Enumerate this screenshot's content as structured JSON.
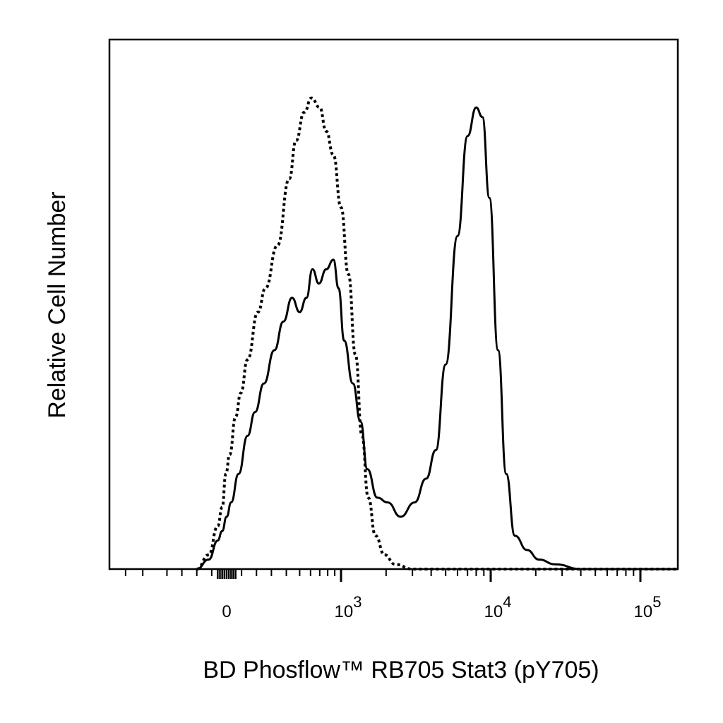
{
  "chart_data": {
    "type": "line",
    "xlabel": "BD Phosflow™ RB705 Stat3 (pY705)",
    "ylabel": "Relative Cell Number",
    "x_scale": "biexponential",
    "x_ticks": [
      {
        "label": "0",
        "value": 0
      },
      {
        "base": "10",
        "exp": "3",
        "value": 1000
      },
      {
        "base": "10",
        "exp": "4",
        "value": 10000
      },
      {
        "base": "10",
        "exp": "5",
        "value": 100000
      }
    ],
    "ylim": [
      0,
      100
    ],
    "grid": false,
    "series": [
      {
        "style": "dotted",
        "color": "#000000",
        "points": [
          [
            -200,
            0
          ],
          [
            -120,
            3
          ],
          [
            -60,
            9
          ],
          [
            -30,
            13
          ],
          [
            -5,
            20
          ],
          [
            20,
            24
          ],
          [
            60,
            32
          ],
          [
            95,
            37
          ],
          [
            140,
            44
          ],
          [
            210,
            54
          ],
          [
            260,
            59
          ],
          [
            340,
            68
          ],
          [
            420,
            82
          ],
          [
            470,
            90
          ],
          [
            540,
            96
          ],
          [
            610,
            99
          ],
          [
            700,
            97
          ],
          [
            780,
            92
          ],
          [
            880,
            87
          ],
          [
            1000,
            76
          ],
          [
            1120,
            62
          ],
          [
            1250,
            45
          ],
          [
            1380,
            28
          ],
          [
            1520,
            15
          ],
          [
            1700,
            7
          ],
          [
            1950,
            3
          ],
          [
            2300,
            1
          ],
          [
            3000,
            0
          ],
          [
            200000,
            0
          ]
        ]
      },
      {
        "style": "solid",
        "color": "#000000",
        "points": [
          [
            -200,
            0
          ],
          [
            -120,
            2
          ],
          [
            -60,
            6
          ],
          [
            -30,
            8
          ],
          [
            0,
            11
          ],
          [
            30,
            14
          ],
          [
            80,
            20
          ],
          [
            140,
            28
          ],
          [
            190,
            33
          ],
          [
            250,
            39
          ],
          [
            320,
            46
          ],
          [
            380,
            52
          ],
          [
            440,
            57
          ],
          [
            500,
            54
          ],
          [
            560,
            57
          ],
          [
            620,
            63
          ],
          [
            690,
            60
          ],
          [
            780,
            63
          ],
          [
            880,
            65
          ],
          [
            960,
            59
          ],
          [
            1050,
            48
          ],
          [
            1200,
            39
          ],
          [
            1350,
            31
          ],
          [
            1500,
            21
          ],
          [
            1750,
            15
          ],
          [
            2050,
            14
          ],
          [
            2500,
            11
          ],
          [
            3100,
            14
          ],
          [
            3700,
            19
          ],
          [
            4300,
            25
          ],
          [
            5000,
            43
          ],
          [
            6000,
            70
          ],
          [
            7000,
            91
          ],
          [
            8000,
            97
          ],
          [
            8800,
            95
          ],
          [
            9800,
            78
          ],
          [
            11200,
            46
          ],
          [
            12700,
            20
          ],
          [
            14500,
            7
          ],
          [
            17500,
            4
          ],
          [
            21000,
            2
          ],
          [
            27000,
            1
          ],
          [
            40000,
            0
          ],
          [
            200000,
            0
          ]
        ]
      }
    ]
  }
}
